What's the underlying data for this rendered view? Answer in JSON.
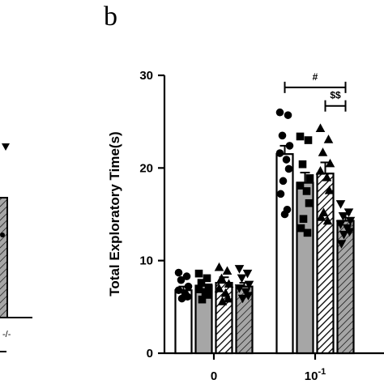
{
  "panel_label": "b",
  "chart_data": {
    "type": "bar",
    "ylabel": "Total Exploratory Time(s)",
    "ylim": [
      0,
      30
    ],
    "yticks": [
      "0",
      "10",
      "20",
      "30"
    ],
    "categories": [
      "0",
      "10-1"
    ],
    "category_labels": [
      {
        "base": "0",
        "exp": ""
      },
      {
        "base": "10",
        "exp": "-1"
      }
    ],
    "series": [
      {
        "values": [
          6.8,
          21.5
        ],
        "errors": [
          0.4,
          0.9
        ],
        "fill": "white",
        "marker": "circle"
      },
      {
        "values": [
          7.3,
          18.4
        ],
        "errors": [
          0.5,
          1.1
        ],
        "fill": "gray",
        "marker": "square"
      },
      {
        "values": [
          7.6,
          19.4
        ],
        "errors": [
          0.6,
          1.2
        ],
        "fill": "hatch",
        "marker": "triangle-up"
      },
      {
        "values": [
          7.2,
          14.3
        ],
        "errors": [
          0.4,
          0.7
        ],
        "fill": "gray-hatch",
        "marker": "triangle-down"
      }
    ],
    "points": [
      [
        [
          8.7,
          8.3,
          7.9,
          7.2,
          6.8,
          6.4,
          6.1,
          5.9
        ],
        [
          26.0,
          25.7,
          23.5,
          22.4,
          21.6,
          20.9,
          19.9,
          18.6,
          17.2,
          15.5,
          15.0
        ]
      ],
      [
        [
          8.6,
          8.1,
          7.6,
          7.1,
          6.9,
          6.6,
          6.3,
          5.8
        ],
        [
          23.4,
          23.0,
          20.4,
          18.9,
          18.1,
          17.5,
          16.2,
          14.5,
          13.5,
          13.0
        ]
      ],
      [
        [
          9.3,
          8.9,
          8.1,
          7.5,
          7.0,
          6.5,
          5.9,
          5.6
        ],
        [
          24.3,
          23.1,
          21.7,
          20.5,
          19.7,
          19.0,
          17.6,
          15.2,
          14.7,
          14.3
        ]
      ],
      [
        [
          9.1,
          8.6,
          8.1,
          7.4,
          7.0,
          6.6,
          6.2,
          5.9
        ],
        [
          16.1,
          15.2,
          14.8,
          14.3,
          13.9,
          13.5,
          13.1,
          12.8,
          11.8
        ]
      ]
    ],
    "annotations": [
      {
        "text": "#",
        "category": 1,
        "from_series": 0,
        "to_series": 3,
        "y": 28.7
      },
      {
        "text": "$$",
        "category": 1,
        "from_series": 2,
        "to_series": 3,
        "y": 26.7
      }
    ]
  },
  "left_panel_fragment": {
    "tick_label": "-/-"
  },
  "colors": {
    "axis": "#000000",
    "bar_gray": "#a6a6a6",
    "bar_white": "#ffffff"
  }
}
